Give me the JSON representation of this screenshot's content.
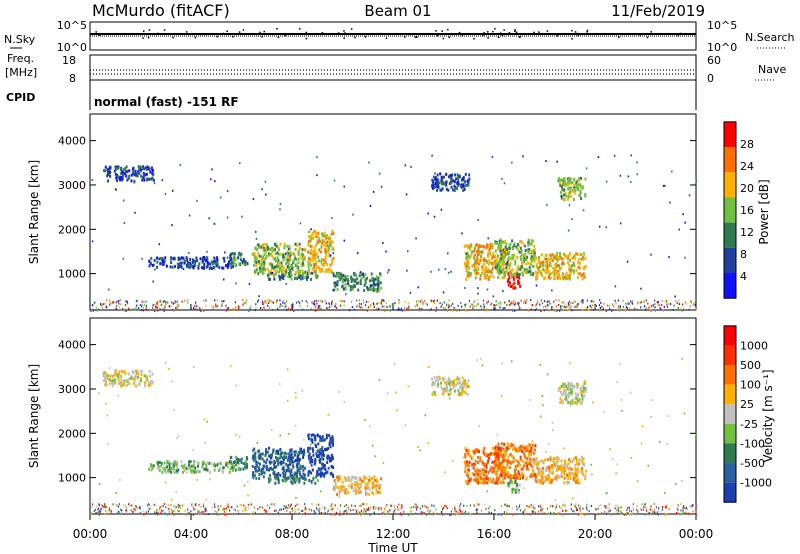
{
  "header": {
    "station": "McMurdo (fitACF)",
    "beam": "Beam 01",
    "date": "11/Feb/2019"
  },
  "summary": {
    "nsky_label": "N.Sky",
    "nsky_ticks": [
      "10^5",
      "10^0"
    ],
    "nsearch_label": "N.Search",
    "nsearch_ticks": [
      "10^5",
      "10^0"
    ],
    "freq_label_line1": "Freq.",
    "freq_label_line2": "[MHz]",
    "freq_ticks": [
      "18",
      "8"
    ],
    "nave_label": "Nave",
    "nave_ticks": [
      "60",
      "0"
    ],
    "cpid_label": "CPID",
    "cpid_text": "normal (fast) -151 RF"
  },
  "time_axis": {
    "label": "Time UT",
    "ticks": [
      "00:00",
      "04:00",
      "08:00",
      "12:00",
      "16:00",
      "20:00",
      "00:00"
    ]
  },
  "chart_data": [
    {
      "type": "heatmap",
      "name": "power",
      "ylabel": "Slant Range [km]",
      "yticks": [
        1000,
        2000,
        3000,
        4000
      ],
      "ylim": [
        180,
        4600
      ],
      "xlim_hours": [
        0,
        24
      ],
      "colorbar_label": "Power [dB]",
      "colorbar_ticks": [
        "28",
        "24",
        "20",
        "16",
        "12",
        "8",
        "4"
      ],
      "colors": [
        "#1010ff",
        "#2040a0",
        "#2e7b4f",
        "#70c040",
        "#ffb000",
        "#ff7000",
        "#ff0000"
      ],
      "echo_regions": [
        {
          "t": [
            0.5,
            2.5
          ],
          "r": [
            3100,
            3450
          ],
          "level": 1
        },
        {
          "t": [
            2.3,
            5.7
          ],
          "r": [
            1150,
            1400
          ],
          "level": 1
        },
        {
          "t": [
            5.5,
            6.2
          ],
          "r": [
            1200,
            1500
          ],
          "level": 2
        },
        {
          "t": [
            6.4,
            8.5
          ],
          "r": [
            1000,
            1700
          ],
          "level": 3
        },
        {
          "t": [
            7.0,
            9.0
          ],
          "r": [
            900,
            1050
          ],
          "level": 2
        },
        {
          "t": [
            8.6,
            9.6
          ],
          "r": [
            1050,
            2000
          ],
          "level": 4
        },
        {
          "t": [
            9.6,
            11.5
          ],
          "r": [
            650,
            1050
          ],
          "level": 2
        },
        {
          "t": [
            13.5,
            15.0
          ],
          "r": [
            2900,
            3300
          ],
          "level": 1
        },
        {
          "t": [
            14.8,
            16.4
          ],
          "r": [
            900,
            1700
          ],
          "level": 4
        },
        {
          "t": [
            16.5,
            17.0
          ],
          "r": [
            700,
            1050
          ],
          "level": 6
        },
        {
          "t": [
            16.0,
            17.6
          ],
          "r": [
            1000,
            1800
          ],
          "level": 3
        },
        {
          "t": [
            17.6,
            19.6
          ],
          "r": [
            900,
            1500
          ],
          "level": 4
        },
        {
          "t": [
            18.5,
            19.6
          ],
          "r": [
            2700,
            3200
          ],
          "level": 3
        }
      ]
    },
    {
      "type": "heatmap",
      "name": "velocity",
      "ylabel": "Slant Range [km]",
      "yticks": [
        1000,
        2000,
        3000,
        4000
      ],
      "ylim": [
        180,
        4600
      ],
      "xlim_hours": [
        0,
        24
      ],
      "colorbar_label": "Velocity [m s⁻¹]",
      "colorbar_ticks": [
        "1000",
        "500",
        "100",
        "25",
        "-25",
        "-100",
        "-500",
        "-1000"
      ],
      "colors": [
        "#1a3fb0",
        "#2860a0",
        "#2e7b4f",
        "#70c040",
        "#c0c0c0",
        "#ffb000",
        "#ff7000",
        "#ff3000",
        "#ff0000"
      ],
      "echo_regions": [
        {
          "t": [
            0.5,
            2.5
          ],
          "r": [
            3100,
            3450
          ],
          "level": 4
        },
        {
          "t": [
            2.3,
            5.7
          ],
          "r": [
            1150,
            1400
          ],
          "level": 3
        },
        {
          "t": [
            5.5,
            6.2
          ],
          "r": [
            1200,
            1500
          ],
          "level": 2
        },
        {
          "t": [
            6.4,
            8.5
          ],
          "r": [
            1000,
            1700
          ],
          "level": 1
        },
        {
          "t": [
            7.0,
            9.0
          ],
          "r": [
            900,
            1050
          ],
          "level": 2
        },
        {
          "t": [
            8.6,
            9.6
          ],
          "r": [
            1050,
            2000
          ],
          "level": 0
        },
        {
          "t": [
            9.6,
            11.5
          ],
          "r": [
            650,
            1050
          ],
          "level": 5
        },
        {
          "t": [
            13.5,
            15.0
          ],
          "r": [
            2900,
            3300
          ],
          "level": 4
        },
        {
          "t": [
            14.8,
            16.4
          ],
          "r": [
            900,
            1700
          ],
          "level": 6
        },
        {
          "t": [
            16.5,
            17.0
          ],
          "r": [
            700,
            1050
          ],
          "level": 3
        },
        {
          "t": [
            16.0,
            17.6
          ],
          "r": [
            1000,
            1800
          ],
          "level": 6
        },
        {
          "t": [
            17.6,
            19.6
          ],
          "r": [
            900,
            1500
          ],
          "level": 5
        },
        {
          "t": [
            18.5,
            19.6
          ],
          "r": [
            2700,
            3200
          ],
          "level": 4
        }
      ]
    }
  ]
}
